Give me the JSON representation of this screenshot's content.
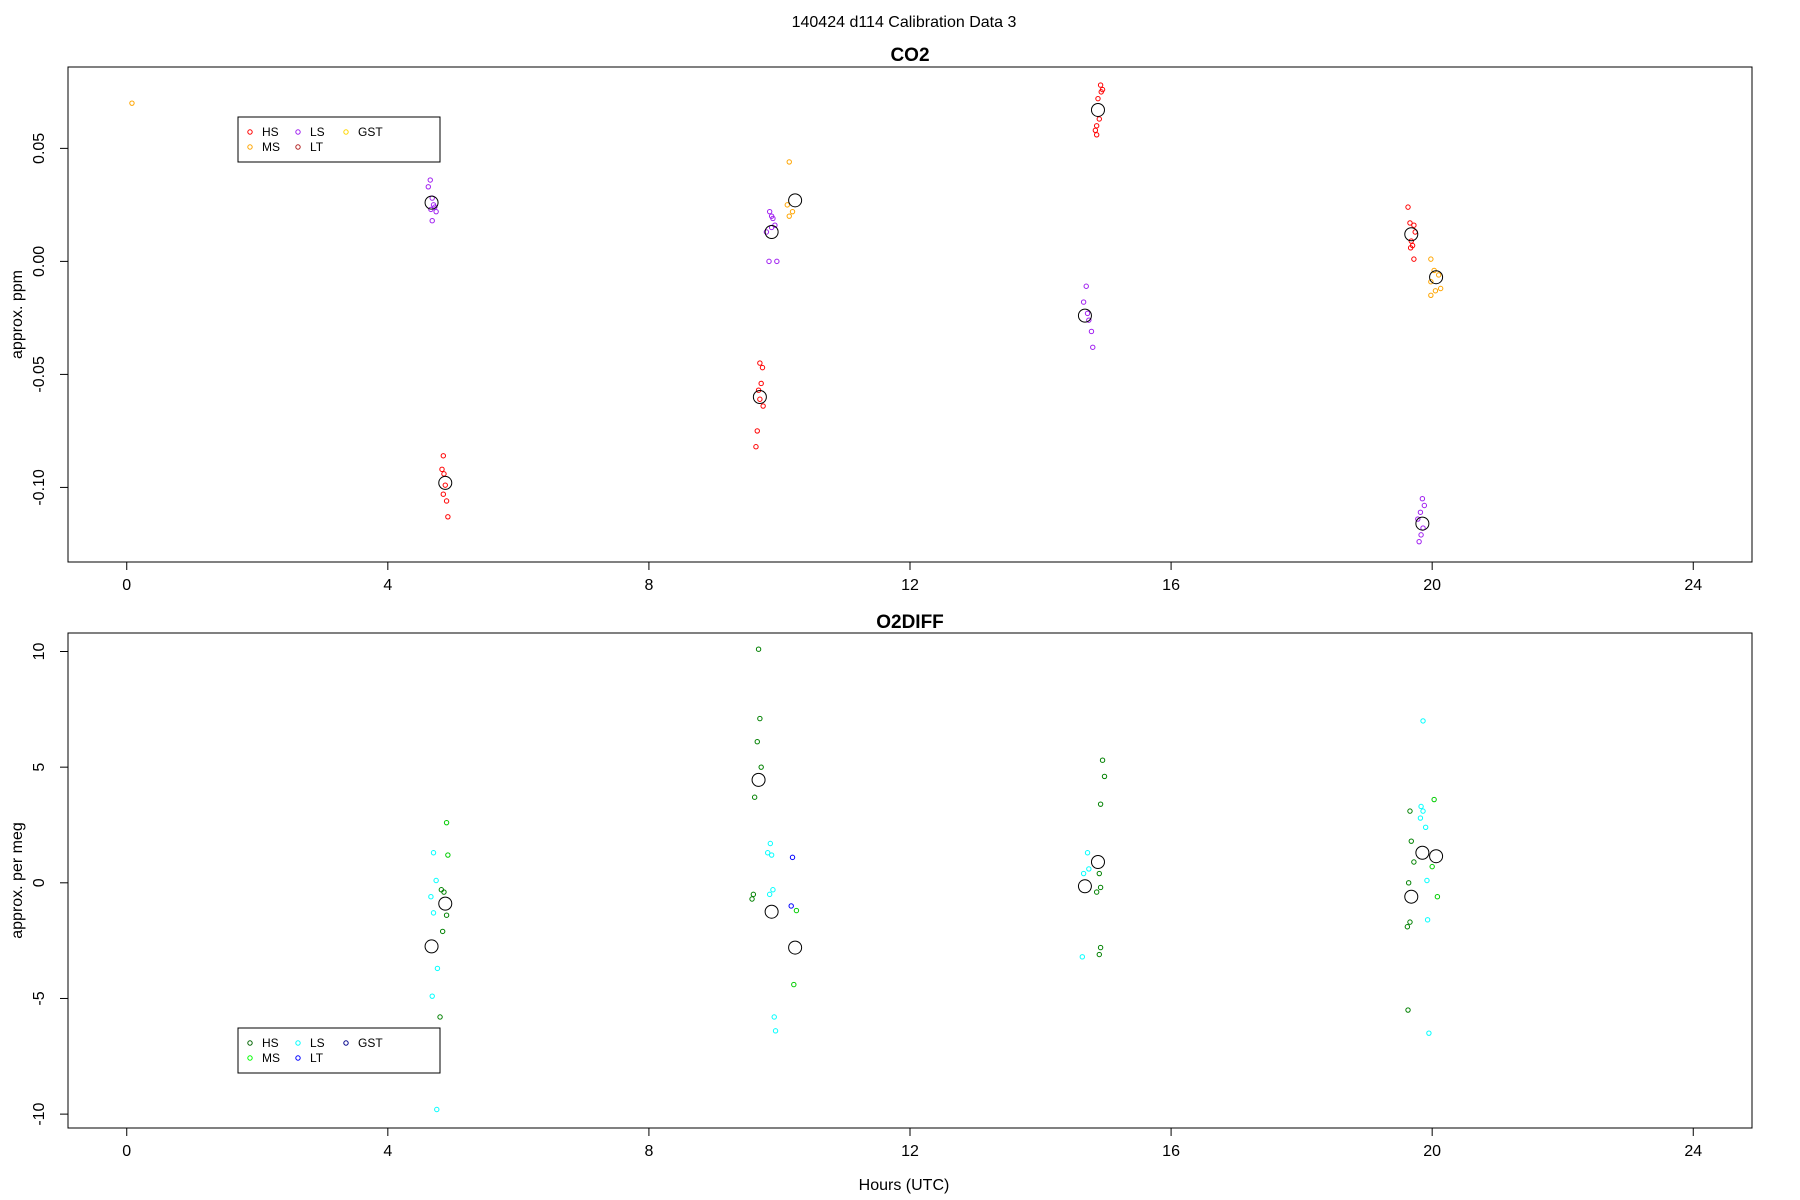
{
  "figure": {
    "title": "140424   d114   Calibration Data 3",
    "xlabel": "Hours (UTC)"
  },
  "chart_data": [
    {
      "type": "scatter",
      "title": "CO2",
      "xlabel": "",
      "ylabel": "approx. ppm",
      "xlim": [
        -0.9,
        24.9
      ],
      "ylim": [
        -0.133,
        0.086
      ],
      "xticks": [
        0,
        4,
        8,
        12,
        16,
        20,
        24
      ],
      "yticks": [
        -0.1,
        -0.05,
        0.0,
        0.05
      ],
      "ytick_labels": [
        "-0.10",
        "-0.05",
        "0.00",
        "0.05"
      ],
      "grid": false,
      "legend": {
        "position": "top-left",
        "entries": [
          {
            "name": "HS",
            "color": "#ff0000"
          },
          {
            "name": "MS",
            "color": "#ffa500"
          },
          {
            "name": "LS",
            "color": "#a020f0"
          },
          {
            "name": "LT",
            "color": "#b22222"
          },
          {
            "name": "GST",
            "color": "#ffd700"
          }
        ]
      },
      "series": [
        {
          "name": "HS",
          "color": "#ff0000",
          "points": [
            [
              4.85,
              -0.086
            ],
            [
              4.83,
              -0.092
            ],
            [
              4.86,
              -0.094
            ],
            [
              4.88,
              -0.099
            ],
            [
              4.85,
              -0.103
            ],
            [
              4.9,
              -0.106
            ],
            [
              4.92,
              -0.113
            ],
            [
              9.7,
              -0.045
            ],
            [
              9.74,
              -0.047
            ],
            [
              9.72,
              -0.054
            ],
            [
              9.68,
              -0.057
            ],
            [
              9.7,
              -0.061
            ],
            [
              9.75,
              -0.064
            ],
            [
              9.66,
              -0.075
            ],
            [
              9.64,
              -0.082
            ],
            [
              14.92,
              0.078
            ],
            [
              14.95,
              0.076
            ],
            [
              14.93,
              0.075
            ],
            [
              14.88,
              0.072
            ],
            [
              14.9,
              0.063
            ],
            [
              14.86,
              0.06
            ],
            [
              14.84,
              0.058
            ],
            [
              14.86,
              0.056
            ],
            [
              19.63,
              0.024
            ],
            [
              19.66,
              0.017
            ],
            [
              19.72,
              0.016
            ],
            [
              19.74,
              0.013
            ],
            [
              19.68,
              0.009
            ],
            [
              19.7,
              0.007
            ],
            [
              19.67,
              0.006
            ],
            [
              19.72,
              0.001
            ]
          ]
        },
        {
          "name": "MS",
          "color": "#ffa500",
          "points": [
            [
              0.08,
              0.07
            ],
            [
              10.15,
              0.044
            ],
            [
              10.12,
              0.025
            ],
            [
              10.2,
              0.022
            ],
            [
              10.15,
              0.02
            ],
            [
              19.98,
              0.001
            ],
            [
              20.03,
              -0.004
            ],
            [
              20.1,
              -0.006
            ],
            [
              19.98,
              -0.009
            ],
            [
              20.13,
              -0.012
            ],
            [
              20.05,
              -0.013
            ],
            [
              19.98,
              -0.015
            ]
          ]
        },
        {
          "name": "LS",
          "color": "#a020f0",
          "points": [
            [
              4.65,
              0.036
            ],
            [
              4.62,
              0.033
            ],
            [
              4.68,
              0.028
            ],
            [
              4.7,
              0.025
            ],
            [
              4.72,
              0.024
            ],
            [
              4.66,
              0.023
            ],
            [
              4.74,
              0.022
            ],
            [
              4.68,
              0.018
            ],
            [
              9.85,
              0.022
            ],
            [
              9.88,
              0.02
            ],
            [
              9.9,
              0.019
            ],
            [
              9.93,
              0.016
            ],
            [
              9.88,
              0.015
            ],
            [
              9.8,
              0.013
            ],
            [
              9.84,
              0.0
            ],
            [
              9.96,
              0.0
            ],
            [
              14.7,
              -0.011
            ],
            [
              14.66,
              -0.018
            ],
            [
              14.72,
              -0.023
            ],
            [
              14.74,
              -0.026
            ],
            [
              14.78,
              -0.031
            ],
            [
              14.8,
              -0.038
            ],
            [
              19.85,
              -0.105
            ],
            [
              19.88,
              -0.108
            ],
            [
              19.82,
              -0.111
            ],
            [
              19.78,
              -0.114
            ],
            [
              19.86,
              -0.118
            ],
            [
              19.83,
              -0.121
            ],
            [
              19.8,
              -0.124
            ]
          ]
        }
      ],
      "means": [
        [
          4.67,
          0.026
        ],
        [
          4.88,
          -0.098
        ],
        [
          9.7,
          -0.06
        ],
        [
          9.88,
          0.013
        ],
        [
          10.24,
          0.027
        ],
        [
          14.68,
          -0.024
        ],
        [
          14.88,
          0.067
        ],
        [
          19.68,
          0.012
        ],
        [
          19.85,
          -0.116
        ],
        [
          20.06,
          -0.007
        ]
      ]
    },
    {
      "type": "scatter",
      "title": "O2DIFF",
      "xlabel": "Hours (UTC)",
      "ylabel": "approx. per meg",
      "xlim": [
        -0.9,
        24.9
      ],
      "ylim": [
        -10.6,
        10.8
      ],
      "xticks": [
        0,
        4,
        8,
        12,
        16,
        20,
        24
      ],
      "yticks": [
        -10,
        -5,
        0,
        5,
        10
      ],
      "ytick_labels": [
        "-10",
        "-5",
        "0",
        "5",
        "10"
      ],
      "grid": false,
      "legend": {
        "position": "bottom-left",
        "entries": [
          {
            "name": "HS",
            "color": "#006400"
          },
          {
            "name": "MS",
            "color": "#00ff00"
          },
          {
            "name": "LS",
            "color": "#00ffff"
          },
          {
            "name": "LT",
            "color": "#0000ff"
          },
          {
            "name": "GST",
            "color": "#00008b"
          }
        ]
      },
      "series": [
        {
          "name": "HS",
          "color": "#008000",
          "points": [
            [
              4.82,
              -0.3
            ],
            [
              4.86,
              -0.4
            ],
            [
              4.9,
              -1.4
            ],
            [
              4.84,
              -2.1
            ],
            [
              4.8,
              -5.8
            ],
            [
              9.68,
              10.1
            ],
            [
              9.7,
              7.1
            ],
            [
              9.66,
              6.1
            ],
            [
              9.72,
              5.0
            ],
            [
              9.62,
              3.7
            ],
            [
              9.6,
              -0.5
            ],
            [
              9.58,
              -0.7
            ],
            [
              14.95,
              5.3
            ],
            [
              14.98,
              4.6
            ],
            [
              14.92,
              3.4
            ],
            [
              14.9,
              0.4
            ],
            [
              14.92,
              -0.2
            ],
            [
              14.86,
              -0.4
            ],
            [
              14.92,
              -2.8
            ],
            [
              14.9,
              -3.1
            ],
            [
              19.66,
              3.1
            ],
            [
              19.68,
              1.8
            ],
            [
              19.72,
              0.9
            ],
            [
              19.64,
              0.0
            ],
            [
              19.66,
              -1.7
            ],
            [
              19.62,
              -1.9
            ],
            [
              19.63,
              -5.5
            ]
          ]
        },
        {
          "name": "MS",
          "color": "#00cc00",
          "points": [
            [
              4.9,
              2.6
            ],
            [
              4.92,
              1.2
            ],
            [
              10.26,
              -1.2
            ],
            [
              10.22,
              -4.4
            ],
            [
              20.03,
              3.6
            ],
            [
              20.0,
              0.7
            ],
            [
              20.08,
              -0.6
            ]
          ]
        },
        {
          "name": "LS",
          "color": "#00ffff",
          "points": [
            [
              4.7,
              1.3
            ],
            [
              4.74,
              0.1
            ],
            [
              4.66,
              -0.6
            ],
            [
              4.7,
              -1.3
            ],
            [
              4.76,
              -3.7
            ],
            [
              4.68,
              -4.9
            ],
            [
              4.75,
              -9.8
            ],
            [
              9.86,
              1.7
            ],
            [
              9.82,
              1.3
            ],
            [
              9.88,
              1.2
            ],
            [
              9.9,
              -0.3
            ],
            [
              9.85,
              -0.5
            ],
            [
              9.92,
              -5.8
            ],
            [
              9.94,
              -6.4
            ],
            [
              14.72,
              1.3
            ],
            [
              14.74,
              0.6
            ],
            [
              14.66,
              0.4
            ],
            [
              14.64,
              -3.2
            ],
            [
              19.83,
              3.3
            ],
            [
              19.86,
              3.1
            ],
            [
              19.82,
              2.8
            ],
            [
              19.9,
              2.4
            ],
            [
              19.92,
              0.1
            ],
            [
              19.93,
              -1.6
            ],
            [
              19.95,
              -6.5
            ],
            [
              19.86,
              7.0
            ]
          ]
        },
        {
          "name": "LT",
          "color": "#0000ff",
          "points": [
            [
              10.2,
              1.1
            ],
            [
              10.18,
              -1.0
            ]
          ]
        }
      ],
      "means": [
        [
          4.67,
          -2.75
        ],
        [
          4.88,
          -0.9
        ],
        [
          9.68,
          4.45
        ],
        [
          9.88,
          -1.25
        ],
        [
          10.24,
          -2.8
        ],
        [
          14.68,
          -0.15
        ],
        [
          14.88,
          0.9
        ],
        [
          19.68,
          -0.6
        ],
        [
          19.85,
          1.3
        ],
        [
          20.06,
          1.15
        ]
      ]
    }
  ]
}
